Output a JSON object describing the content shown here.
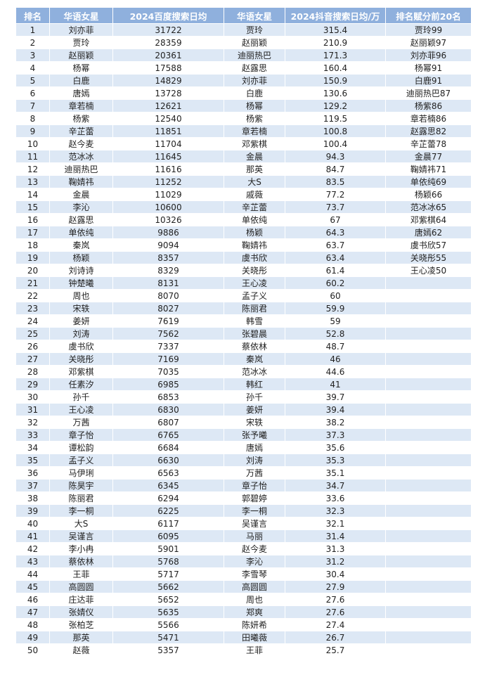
{
  "table": {
    "headers": [
      "排名",
      "华语女星",
      "2024百度搜索日均",
      "华语女星",
      "2024抖音搜索日均/万",
      "排名赋分前20名"
    ],
    "rows": [
      [
        1,
        "刘亦菲",
        31722,
        "贾玲",
        315.4
      ],
      [
        2,
        "贾玲",
        28359,
        "赵丽颖",
        210.9
      ],
      [
        3,
        "赵丽颖",
        20361,
        "迪丽热巴",
        171.3
      ],
      [
        4,
        "杨幂",
        17588,
        "赵露思",
        160.4
      ],
      [
        5,
        "白鹿",
        14829,
        "刘亦菲",
        150.9
      ],
      [
        6,
        "唐嫣",
        13728,
        "白鹿",
        130.6
      ],
      [
        7,
        "章若楠",
        12621,
        "杨幂",
        129.2
      ],
      [
        8,
        "杨紫",
        12540,
        "杨紫",
        119.5
      ],
      [
        9,
        "辛芷蕾",
        11851,
        "章若楠",
        100.8
      ],
      [
        10,
        "赵今麦",
        11704,
        "邓紫棋",
        100.4
      ],
      [
        11,
        "范冰冰",
        11645,
        "金晨",
        94.3
      ],
      [
        12,
        "迪丽热巴",
        11616,
        "那英",
        84.7
      ],
      [
        13,
        "鞠婧祎",
        11252,
        "大S",
        83.5
      ],
      [
        14,
        "金晨",
        11029,
        "戚薇",
        77.2
      ],
      [
        15,
        "李沁",
        10600,
        "辛芷蕾",
        73.7
      ],
      [
        16,
        "赵露思",
        10326,
        "单依纯",
        67
      ],
      [
        17,
        "单依纯",
        9886,
        "杨颖",
        64.3
      ],
      [
        18,
        "秦岚",
        9094,
        "鞠婧祎",
        63.7
      ],
      [
        19,
        "杨颖",
        8357,
        "虞书欣",
        63.4
      ],
      [
        20,
        "刘诗诗",
        8329,
        "关晓彤",
        61.4
      ],
      [
        21,
        "钟楚曦",
        8131,
        "王心凌",
        60.2
      ],
      [
        22,
        "周也",
        8070,
        "孟子义",
        60
      ],
      [
        23,
        "宋轶",
        8027,
        "陈丽君",
        59.9
      ],
      [
        24,
        "姜妍",
        7619,
        "韩雪",
        59
      ],
      [
        25,
        "刘涛",
        7562,
        "张碧晨",
        52.8
      ],
      [
        26,
        "虞书欣",
        7337,
        "蔡依林",
        48.7
      ],
      [
        27,
        "关晓彤",
        7169,
        "秦岚",
        46
      ],
      [
        28,
        "邓紫棋",
        7035,
        "范冰冰",
        44.6
      ],
      [
        29,
        "任素汐",
        6985,
        "韩红",
        41
      ],
      [
        30,
        "孙千",
        6853,
        "孙千",
        39.7
      ],
      [
        31,
        "王心凌",
        6830,
        "姜妍",
        39.4
      ],
      [
        32,
        "万茜",
        6807,
        "宋轶",
        38.2
      ],
      [
        33,
        "章子怡",
        6765,
        "张予曦",
        37.3
      ],
      [
        34,
        "谭松韵",
        6684,
        "唐嫣",
        35.6
      ],
      [
        35,
        "孟子义",
        6630,
        "刘涛",
        35.3
      ],
      [
        36,
        "马伊琍",
        6563,
        "万茜",
        35.1
      ],
      [
        37,
        "陈昊宇",
        6345,
        "章子怡",
        34.7
      ],
      [
        38,
        "陈丽君",
        6294,
        "郭碧婷",
        33.6
      ],
      [
        39,
        "李一桐",
        6225,
        "李一桐",
        32.3
      ],
      [
        40,
        "大S",
        6117,
        "吴谨言",
        32.1
      ],
      [
        41,
        "吴谨言",
        6095,
        "马丽",
        31.4
      ],
      [
        42,
        "李小冉",
        5901,
        "赵今麦",
        31.3
      ],
      [
        43,
        "蔡依林",
        5768,
        "李沁",
        31.2
      ],
      [
        44,
        "王菲",
        5717,
        "李雪琴",
        30.4
      ],
      [
        45,
        "高圆圆",
        5662,
        "高圆圆",
        27.9
      ],
      [
        46,
        "庄达菲",
        5652,
        "周也",
        27.6
      ],
      [
        47,
        "张婧仪",
        5635,
        "郑爽",
        27.6
      ],
      [
        48,
        "张柏芝",
        5566,
        "陈妍希",
        27.4
      ],
      [
        49,
        "那英",
        5471,
        "田曦薇",
        26.7
      ],
      [
        50,
        "赵薇",
        5357,
        "王菲",
        25.7
      ]
    ],
    "top20": [
      "贾玲99",
      "赵丽颖97",
      "刘亦菲96",
      "杨幂91",
      "白鹿91",
      "迪丽热巴87",
      "杨紫86",
      "章若楠86",
      "赵露思82",
      "辛芷蕾78",
      "金晨77",
      "鞠婧祎71",
      "单依纯69",
      "杨颖66",
      "范冰冰65",
      "邓紫棋64",
      "唐嫣62",
      "虞书欣57",
      "关晓彤55",
      "王心凌50"
    ]
  }
}
